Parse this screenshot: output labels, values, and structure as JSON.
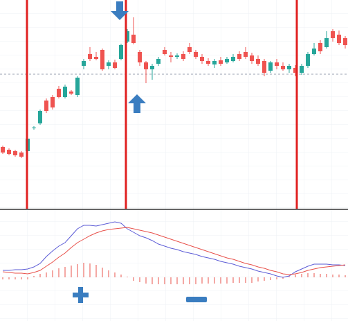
{
  "chart_data": [
    {
      "type": "candlestick",
      "ylim": [
        0,
        300
      ],
      "up_color": "#26a69a",
      "down_color": "#ef5350",
      "open": [
        88,
        84,
        82,
        80,
        82,
        115,
        122,
        155,
        160,
        172,
        160,
        168,
        163,
        205,
        222,
        218,
        228,
        205,
        210,
        215,
        240,
        250,
        225,
        210,
        200,
        208,
        228,
        220,
        218,
        222,
        232,
        225,
        218,
        212,
        207,
        213,
        210,
        212,
        222,
        225,
        220,
        215,
        212,
        198,
        210,
        205,
        200,
        202,
        195,
        205,
        222,
        238,
        232,
        255,
        250,
        245
      ],
      "high": [
        90,
        86,
        84,
        82,
        102,
        118,
        142,
        158,
        163,
        176,
        178,
        170,
        190,
        215,
        232,
        225,
        230,
        213,
        214,
        237,
        258,
        275,
        228,
        212,
        208,
        218,
        232,
        225,
        223,
        226,
        238,
        228,
        222,
        216,
        215,
        218,
        218,
        222,
        226,
        232,
        224,
        220,
        215,
        212,
        215,
        210,
        208,
        206,
        208,
        225,
        238,
        242,
        255,
        258,
        256,
        248
      ],
      "low": [
        78,
        76,
        74,
        72,
        80,
        113,
        120,
        137,
        142,
        158,
        158,
        163,
        160,
        200,
        212,
        213,
        198,
        200,
        200,
        213,
        238,
        236,
        205,
        180,
        185,
        205,
        220,
        210,
        215,
        212,
        222,
        215,
        208,
        205,
        202,
        205,
        208,
        210,
        212,
        215,
        208,
        205,
        190,
        195,
        200,
        198,
        195,
        190,
        192,
        202,
        220,
        222,
        230,
        240,
        235,
        230
      ],
      "close": [
        80,
        78,
        76,
        74,
        100,
        116,
        140,
        140,
        145,
        160,
        175,
        165,
        188,
        212,
        215,
        215,
        200,
        210,
        202,
        235,
        255,
        238,
        210,
        200,
        205,
        215,
        222,
        218,
        220,
        215,
        225,
        218,
        212,
        208,
        212,
        208,
        215,
        218,
        215,
        218,
        212,
        208,
        195,
        210,
        205,
        200,
        205,
        195,
        205,
        222,
        230,
        226,
        245,
        245,
        238,
        235
      ]
    },
    {
      "type": "macd",
      "ylim": [
        -60,
        100
      ],
      "series": [
        {
          "color": "#5b5bd6",
          "values": [
            10,
            10,
            11,
            11,
            12,
            15,
            20,
            30,
            38,
            45,
            50,
            60,
            70,
            75,
            75,
            74,
            76,
            78,
            80,
            78,
            70,
            65,
            60,
            57,
            53,
            48,
            45,
            42,
            40,
            37,
            35,
            33,
            30,
            28,
            26,
            23,
            21,
            19,
            16,
            14,
            12,
            9,
            7,
            5,
            2,
            0,
            2,
            8,
            12,
            16,
            19,
            19,
            19,
            18,
            18,
            17
          ]
        },
        {
          "color": "#e8504a",
          "values": [
            8,
            7,
            6,
            6,
            5,
            7,
            10,
            16,
            22,
            29,
            35,
            43,
            50,
            55,
            60,
            64,
            67,
            69,
            70,
            71,
            72,
            70,
            68,
            66,
            64,
            61,
            58,
            55,
            52,
            49,
            46,
            43,
            40,
            37,
            34,
            31,
            28,
            26,
            23,
            20,
            18,
            15,
            13,
            10,
            8,
            5,
            4,
            5,
            7,
            10,
            12,
            14,
            15,
            16,
            17,
            18
          ]
        }
      ],
      "histogram": {
        "color": "#e8504a",
        "values": [
          -3,
          -3,
          -3,
          -3,
          -3,
          2,
          5,
          7,
          10,
          13,
          15,
          17,
          19,
          21,
          20,
          18,
          14,
          10,
          7,
          4,
          1,
          -5,
          -7,
          -9,
          -10,
          -10,
          -10,
          -10,
          -10,
          -10,
          -10,
          -10,
          -9,
          -9,
          -9,
          -9,
          -9,
          -8,
          -8,
          -8,
          -8,
          -6,
          -5,
          -4,
          -3,
          -2,
          2,
          4,
          5,
          6,
          6,
          5,
          5,
          4,
          4,
          3
        ]
      }
    }
  ]
}
